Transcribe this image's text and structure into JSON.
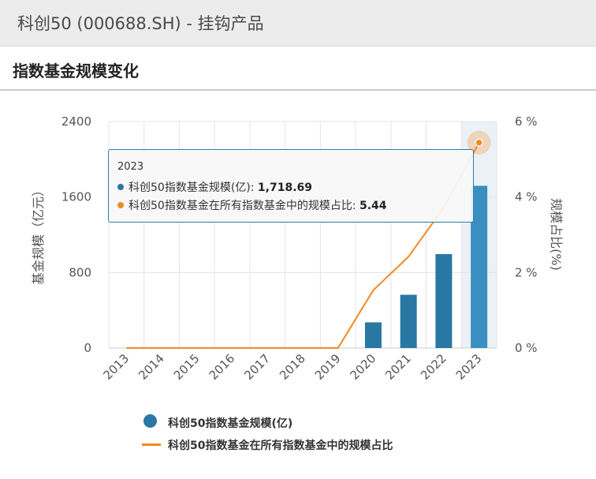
{
  "header": {
    "title": "科创50 (000688.SH) - 挂钩产品"
  },
  "section": {
    "title": "指数基金规模变化"
  },
  "colors": {
    "bar": "#2878a3",
    "bar_highlight": "#3a8fc0",
    "line": "#f08a22",
    "grid": "#e3e3e3",
    "highlight_band": "#ecf1f7"
  },
  "chart_data": {
    "type": "bar",
    "categories": [
      "2013",
      "2014",
      "2015",
      "2016",
      "2017",
      "2018",
      "2019",
      "2020",
      "2021",
      "2022",
      "2023"
    ],
    "series": [
      {
        "name": "科创50指数基金规模(亿)",
        "type": "bar",
        "axis": "left",
        "values": [
          0,
          0,
          0,
          0,
          0,
          0,
          0,
          272,
          564,
          995,
          1718.69
        ]
      },
      {
        "name": "科创50指数基金在所有指数基金中的规模占比",
        "type": "line",
        "axis": "right",
        "values": [
          0,
          0,
          0,
          0,
          0,
          0,
          0,
          1.53,
          2.42,
          3.72,
          5.44
        ]
      }
    ],
    "ylabel": "基金规模（亿元）",
    "y2label": "规模占比(%)",
    "ylim": [
      0,
      2400
    ],
    "y2lim": [
      0,
      6
    ],
    "yticks": [
      "0",
      "800",
      "1600",
      "2400"
    ],
    "y2ticks": [
      "0 %",
      "2 %",
      "4 %",
      "6 %"
    ],
    "grid": true,
    "legend": "bottom"
  },
  "tooltip": {
    "year": "2023",
    "row1_label": "科创50指数基金规模(亿): ",
    "row1_value": "1,718.69",
    "row2_label": "科创50指数基金在所有指数基金中的规模占比: ",
    "row2_value": "5.44"
  }
}
